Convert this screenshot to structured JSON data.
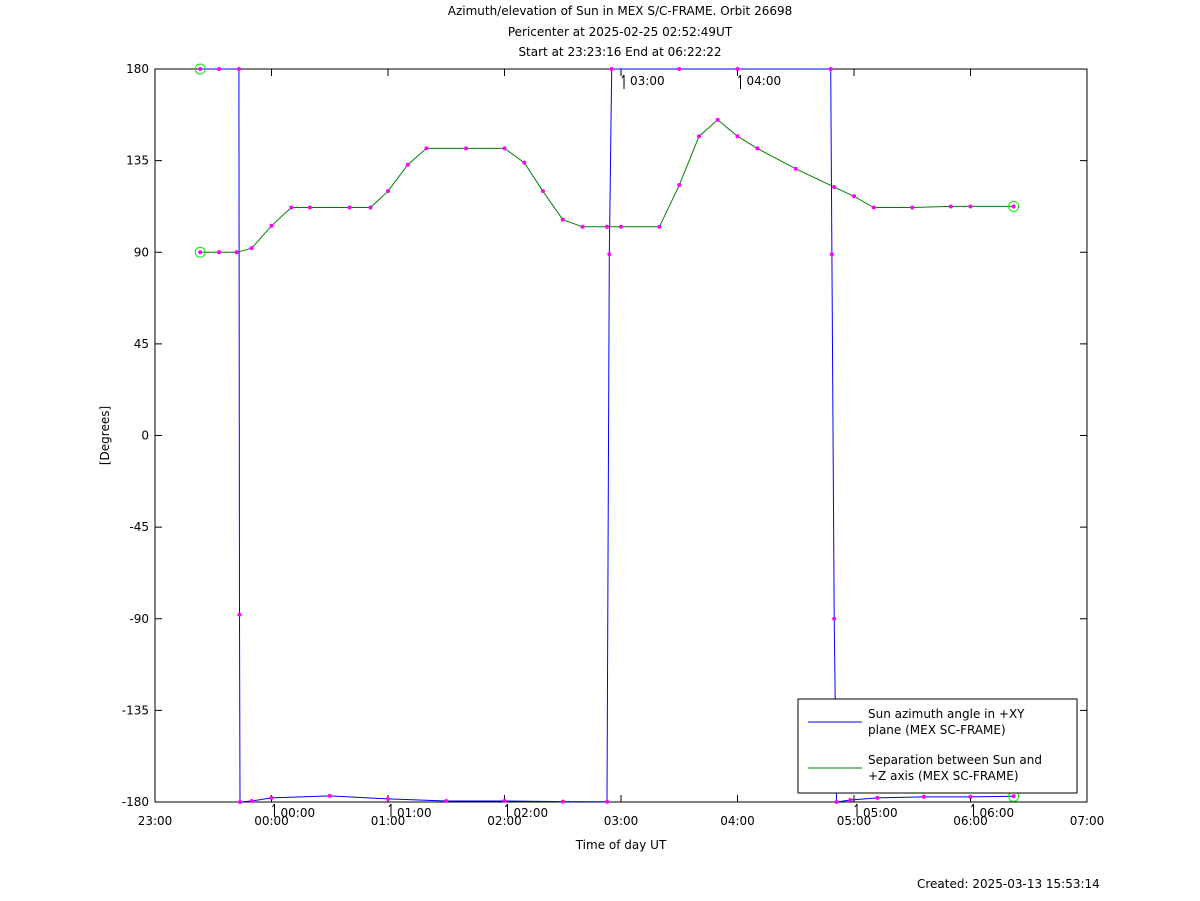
{
  "titles": [
    "Azimuth/elevation of Sun in MEX S/C-FRAME.  Orbit 26698",
    "Pericenter at 2025-02-25 02:52:49UT",
    "Start at 23:23:16 End at 06:22:22"
  ],
  "created": "Created: 2025-03-13 15:53:14",
  "chart_data": {
    "type": "line",
    "xlabel": "Time of day UT",
    "ylabel": "[Degrees]",
    "xlim": [
      23.0,
      31.0
    ],
    "ylim": [
      -180,
      180
    ],
    "x_ticks": [
      {
        "v": 23,
        "label": "23:00"
      },
      {
        "v": 24,
        "label": "00:00"
      },
      {
        "v": 25,
        "label": "01:00"
      },
      {
        "v": 26,
        "label": "02:00"
      },
      {
        "v": 27,
        "label": "03:00"
      },
      {
        "v": 28,
        "label": "04:00"
      },
      {
        "v": 29,
        "label": "05:00"
      },
      {
        "v": 30,
        "label": "06:00"
      },
      {
        "v": 31,
        "label": "07:00"
      }
    ],
    "y_ticks": [
      180,
      135,
      90,
      45,
      0,
      -45,
      -90,
      -135,
      -180
    ],
    "hour_marks": [
      {
        "x": 24.0,
        "label": "00:00",
        "side": "bottom"
      },
      {
        "x": 25.0,
        "label": "01:00",
        "side": "bottom"
      },
      {
        "x": 26.0,
        "label": "02:00",
        "side": "bottom"
      },
      {
        "x": 27.0,
        "label": "03:00",
        "side": "top"
      },
      {
        "x": 28.0,
        "label": "04:00",
        "side": "top"
      },
      {
        "x": 29.0,
        "label": "05:00",
        "side": "bottom"
      },
      {
        "x": 30.0,
        "label": "06:00",
        "side": "bottom"
      }
    ],
    "series": [
      {
        "name": "Sun azimuth angle in +XY plane (MEX SC-FRAME)",
        "color": "#0000ff",
        "points": [
          [
            23.388,
            180
          ],
          [
            23.55,
            180
          ],
          [
            23.72,
            180
          ],
          [
            23.725,
            -88
          ],
          [
            23.73,
            -180
          ],
          [
            23.83,
            -179.5
          ],
          [
            24.0,
            -178
          ],
          [
            24.5,
            -177
          ],
          [
            25.0,
            -178.5
          ],
          [
            25.5,
            -179.5
          ],
          [
            26.0,
            -179.5
          ],
          [
            26.5,
            -179.8
          ],
          [
            26.88,
            -179.9
          ],
          [
            26.9,
            89
          ],
          [
            26.92,
            180
          ],
          [
            27.5,
            180
          ],
          [
            28.0,
            180
          ],
          [
            28.8,
            180
          ],
          [
            28.81,
            89
          ],
          [
            28.83,
            -90
          ],
          [
            28.85,
            -180
          ],
          [
            28.97,
            -179
          ],
          [
            29.2,
            -178
          ],
          [
            29.6,
            -177.5
          ],
          [
            30.0,
            -177.5
          ],
          [
            30.37,
            -177.2
          ]
        ]
      },
      {
        "name": "Separation between Sun and +Z axis (MEX SC-FRAME)",
        "color": "#008000",
        "points": [
          [
            23.388,
            90
          ],
          [
            23.55,
            90
          ],
          [
            23.7,
            90
          ],
          [
            23.83,
            92
          ],
          [
            24.0,
            103
          ],
          [
            24.17,
            112
          ],
          [
            24.33,
            112
          ],
          [
            24.67,
            112
          ],
          [
            24.85,
            112
          ],
          [
            25.0,
            120
          ],
          [
            25.17,
            133
          ],
          [
            25.33,
            141
          ],
          [
            25.67,
            141
          ],
          [
            26.0,
            141
          ],
          [
            26.17,
            134
          ],
          [
            26.33,
            120
          ],
          [
            26.5,
            106
          ],
          [
            26.67,
            102.5
          ],
          [
            26.88,
            102.5
          ],
          [
            27.0,
            102.5
          ],
          [
            27.33,
            102.5
          ],
          [
            27.5,
            123
          ],
          [
            27.67,
            147
          ],
          [
            27.83,
            155
          ],
          [
            28.0,
            147
          ],
          [
            28.17,
            141
          ],
          [
            28.5,
            131
          ],
          [
            28.83,
            122
          ],
          [
            29.0,
            117.5
          ],
          [
            29.17,
            112
          ],
          [
            29.5,
            112
          ],
          [
            29.83,
            112.5
          ],
          [
            30.0,
            112.5
          ],
          [
            30.37,
            112.5
          ]
        ]
      }
    ],
    "legend_position": "bottom-right"
  }
}
